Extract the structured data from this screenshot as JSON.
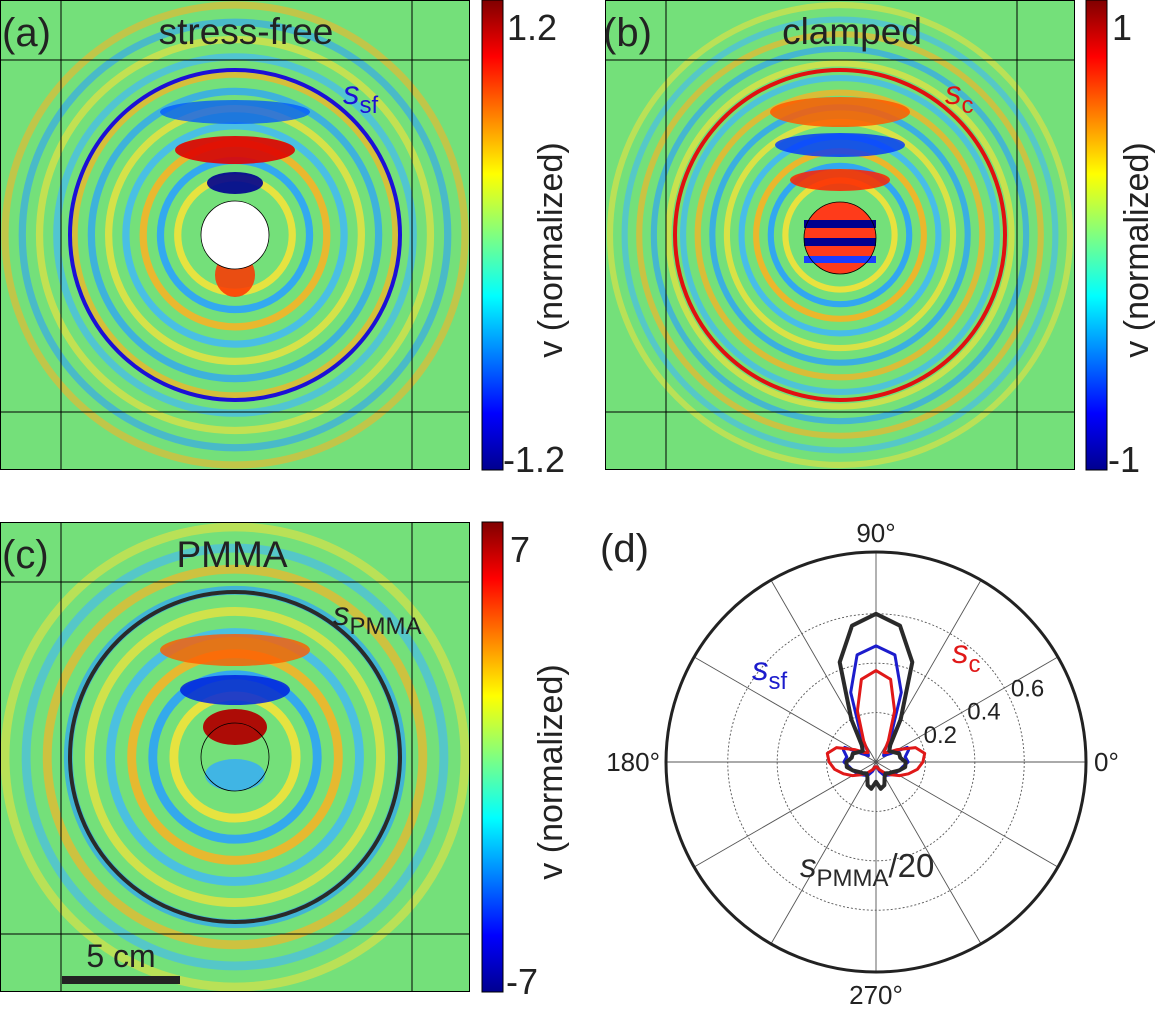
{
  "panels": [
    {
      "letter": "(a)",
      "title": "stress-free",
      "curve_label": "s",
      "curve_sub": "sf",
      "curve_color": "#1c0fd6",
      "colorbar_max": "1.2",
      "colorbar_min": "-1.2",
      "colorbar_label": "v (normalized)",
      "obstacle": "hole",
      "fringe_rings": 11
    },
    {
      "letter": "(b)",
      "title": "clamped",
      "curve_label": "s",
      "curve_sub": "c",
      "curve_color": "#e01010",
      "colorbar_max": "1",
      "colorbar_min": "-1",
      "colorbar_label": "v (normalized)",
      "obstacle": "clamped",
      "fringe_rings": 13
    },
    {
      "letter": "(c)",
      "title": "PMMA",
      "curve_label": "s",
      "curve_sub": "PMMA",
      "curve_color": "#2a2a2a",
      "colorbar_max": "7",
      "colorbar_min": "-7",
      "colorbar_label": "v (normalized)",
      "obstacle": "inclusion",
      "fringe_rings": 9
    }
  ],
  "scale_bar": {
    "label": "5 cm"
  },
  "colors": {
    "map_background": "#74e07a",
    "hole": "#ffffff"
  },
  "chart_data": {
    "type": "polar",
    "panel": "(d)",
    "angle_labels": [
      "0°",
      "90°",
      "180°",
      "270°"
    ],
    "radial_ticks": [
      0.2,
      0.4,
      0.6
    ],
    "radial_max": 0.85,
    "spoke_step_deg": 30,
    "series": [
      {
        "name": "s_sf",
        "label": "s",
        "sub": "sf",
        "color": "#1c1ccc",
        "points": [
          [
            0,
            0.13
          ],
          [
            10,
            0.12
          ],
          [
            20,
            0.14
          ],
          [
            25,
            0.14
          ],
          [
            30,
            0.07
          ],
          [
            40,
            0.04
          ],
          [
            50,
            0.05
          ],
          [
            60,
            0.12
          ],
          [
            70,
            0.3
          ],
          [
            80,
            0.44
          ],
          [
            90,
            0.47
          ],
          [
            100,
            0.44
          ],
          [
            110,
            0.3
          ],
          [
            120,
            0.12
          ],
          [
            130,
            0.05
          ],
          [
            140,
            0.04
          ],
          [
            150,
            0.07
          ],
          [
            155,
            0.14
          ],
          [
            160,
            0.14
          ],
          [
            170,
            0.12
          ],
          [
            180,
            0.13
          ],
          [
            190,
            0.11
          ],
          [
            200,
            0.1
          ],
          [
            210,
            0.09
          ],
          [
            220,
            0.08
          ],
          [
            230,
            0.07
          ],
          [
            240,
            0.06
          ],
          [
            250,
            0.04
          ],
          [
            260,
            0.02
          ],
          [
            270,
            0.02
          ],
          [
            280,
            0.02
          ],
          [
            290,
            0.04
          ],
          [
            300,
            0.06
          ],
          [
            310,
            0.07
          ],
          [
            320,
            0.08
          ],
          [
            330,
            0.09
          ],
          [
            340,
            0.1
          ],
          [
            350,
            0.11
          ],
          [
            360,
            0.13
          ]
        ]
      },
      {
        "name": "s_c",
        "label": "s",
        "sub": "c",
        "color": "#e01818",
        "points": [
          [
            0,
            0.19
          ],
          [
            10,
            0.2
          ],
          [
            20,
            0.17
          ],
          [
            30,
            0.1
          ],
          [
            40,
            0.06
          ],
          [
            50,
            0.05
          ],
          [
            60,
            0.1
          ],
          [
            70,
            0.22
          ],
          [
            80,
            0.34
          ],
          [
            90,
            0.37
          ],
          [
            100,
            0.34
          ],
          [
            110,
            0.22
          ],
          [
            120,
            0.1
          ],
          [
            130,
            0.05
          ],
          [
            140,
            0.06
          ],
          [
            150,
            0.1
          ],
          [
            160,
            0.17
          ],
          [
            170,
            0.2
          ],
          [
            180,
            0.19
          ],
          [
            190,
            0.17
          ],
          [
            200,
            0.14
          ],
          [
            210,
            0.11
          ],
          [
            220,
            0.08
          ],
          [
            230,
            0.06
          ],
          [
            240,
            0.04
          ],
          [
            250,
            0.03
          ],
          [
            260,
            0.02
          ],
          [
            270,
            0.02
          ],
          [
            280,
            0.02
          ],
          [
            290,
            0.03
          ],
          [
            300,
            0.04
          ],
          [
            310,
            0.06
          ],
          [
            320,
            0.08
          ],
          [
            330,
            0.11
          ],
          [
            340,
            0.14
          ],
          [
            350,
            0.17
          ],
          [
            360,
            0.19
          ]
        ]
      },
      {
        "name": "s_PMMA/20",
        "label": "s",
        "sub": "PMMA",
        "suffix": "/20",
        "color": "#2a2a2a",
        "points": [
          [
            0,
            0.12
          ],
          [
            10,
            0.1
          ],
          [
            20,
            0.1
          ],
          [
            30,
            0.08
          ],
          [
            40,
            0.07
          ],
          [
            50,
            0.09
          ],
          [
            60,
            0.2
          ],
          [
            70,
            0.43
          ],
          [
            80,
            0.56
          ],
          [
            90,
            0.6
          ],
          [
            100,
            0.56
          ],
          [
            110,
            0.43
          ],
          [
            120,
            0.2
          ],
          [
            130,
            0.09
          ],
          [
            140,
            0.07
          ],
          [
            150,
            0.08
          ],
          [
            160,
            0.1
          ],
          [
            170,
            0.1
          ],
          [
            180,
            0.12
          ],
          [
            190,
            0.12
          ],
          [
            200,
            0.1
          ],
          [
            210,
            0.08
          ],
          [
            220,
            0.07
          ],
          [
            230,
            0.06
          ],
          [
            240,
            0.07
          ],
          [
            250,
            0.1
          ],
          [
            260,
            0.11
          ],
          [
            270,
            0.08
          ],
          [
            280,
            0.11
          ],
          [
            290,
            0.1
          ],
          [
            300,
            0.07
          ],
          [
            310,
            0.06
          ],
          [
            320,
            0.07
          ],
          [
            330,
            0.08
          ],
          [
            340,
            0.1
          ],
          [
            350,
            0.12
          ],
          [
            360,
            0.12
          ]
        ]
      }
    ]
  }
}
